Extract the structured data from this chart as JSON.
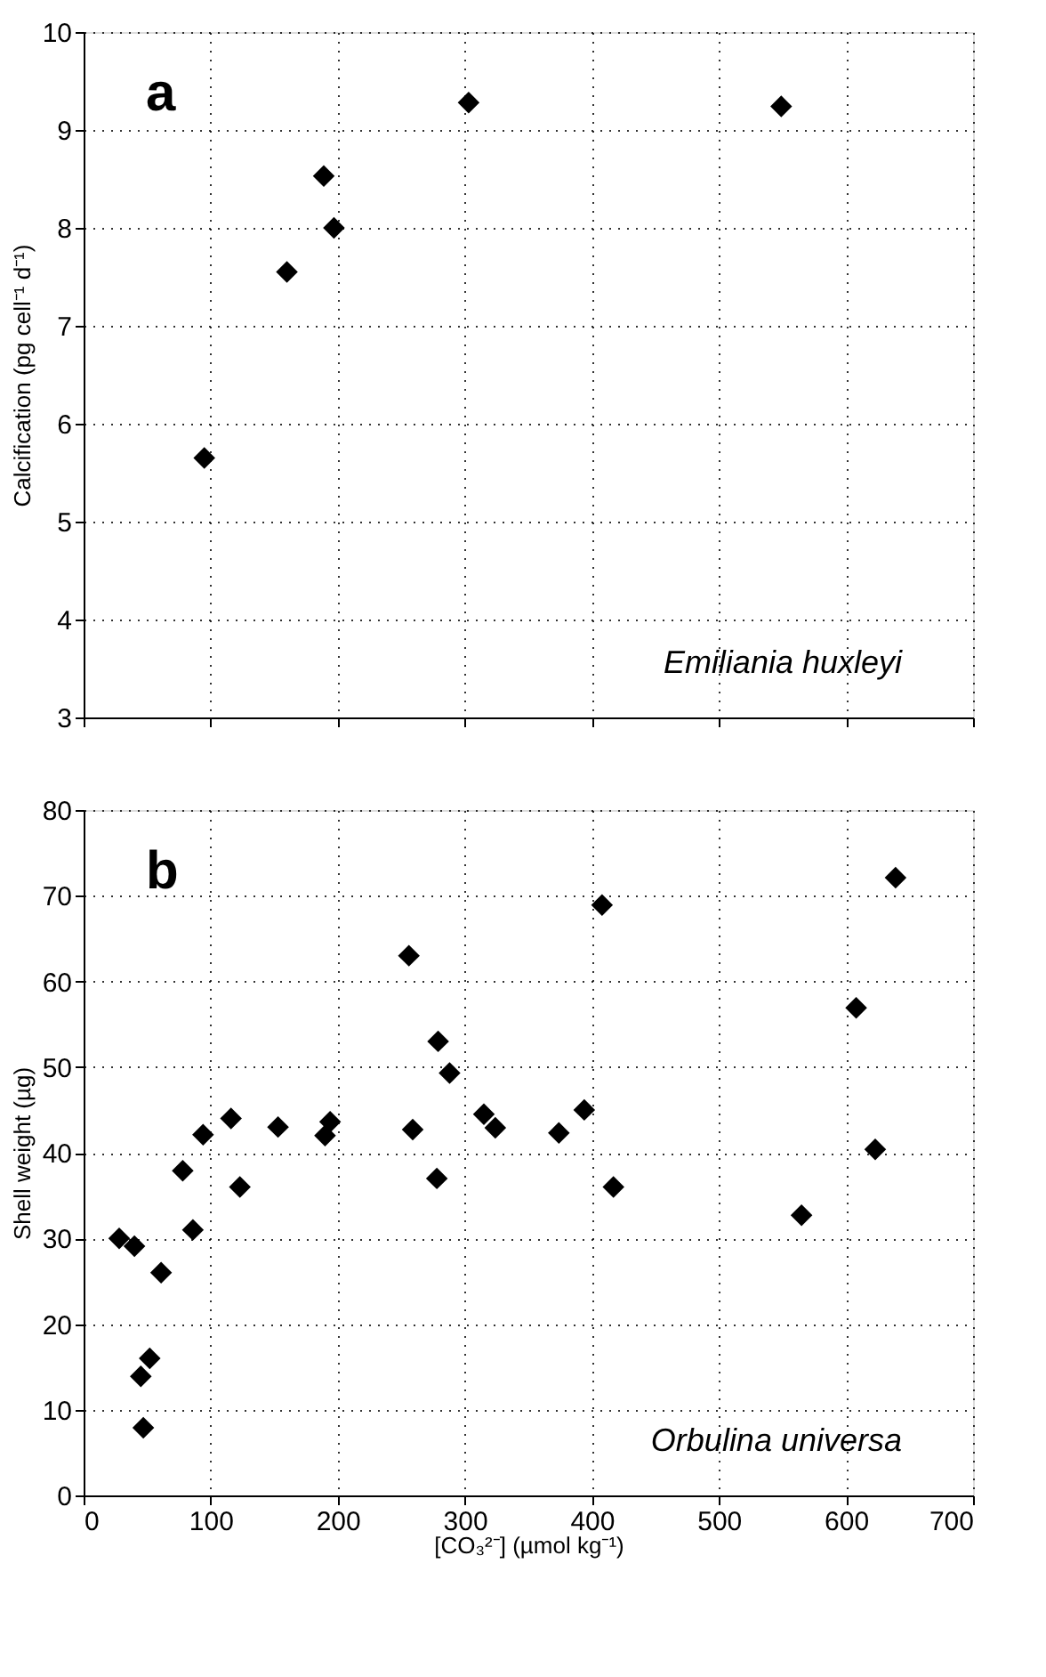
{
  "chart_data": [
    {
      "type": "scatter",
      "ylabel": "Calcification (pg cell⁻¹ d⁻¹)",
      "annotations": [
        "a",
        "Emiliania huxleyi"
      ],
      "x": [
        95,
        160,
        189,
        197,
        303,
        549
      ],
      "series": [
        {
          "color": "#000000",
          "values": [
            5.65,
            7.55,
            8.53,
            8.0,
            9.28,
            9.24
          ]
        }
      ],
      "xlim": [
        0,
        700
      ],
      "xticks": [
        0,
        100,
        200,
        300,
        400,
        500,
        600,
        700
      ],
      "ylim": [
        3,
        10
      ],
      "yticks": [
        3,
        4,
        5,
        6,
        7,
        8,
        9,
        10
      ],
      "tick_labels": "y",
      "grid": true,
      "marker": "diamond"
    },
    {
      "type": "scatter",
      "xlabel": "[CO₃²⁻] (µmol kg⁻¹)",
      "ylabel": "Shell weight (µg)",
      "annotations": [
        "b",
        "Orbulina universa"
      ],
      "x": [
        28,
        40,
        45,
        47,
        52,
        61,
        78,
        86,
        94,
        116,
        123,
        153,
        190,
        194,
        256,
        259,
        278,
        279,
        288,
        315,
        324,
        374,
        394,
        408,
        417,
        565,
        608,
        623,
        639
      ],
      "series": [
        {
          "color": "#000000",
          "values": [
            30.0,
            29.1,
            13.9,
            7.9,
            16,
            26,
            37.9,
            31,
            42.1,
            44,
            36,
            43,
            42,
            43.6,
            63,
            42.7,
            37,
            53,
            49.3,
            44.5,
            42.9,
            42.3,
            45,
            68.9,
            36,
            32.7,
            56.9,
            40.4,
            72.1
          ]
        }
      ],
      "xlim": [
        0,
        700
      ],
      "xticks": [
        0,
        100,
        200,
        300,
        400,
        500,
        600,
        700
      ],
      "ylim": [
        0,
        80
      ],
      "yticks": [
        0,
        10,
        20,
        30,
        40,
        50,
        60,
        70,
        80
      ],
      "grid": true,
      "marker": "diamond"
    }
  ]
}
